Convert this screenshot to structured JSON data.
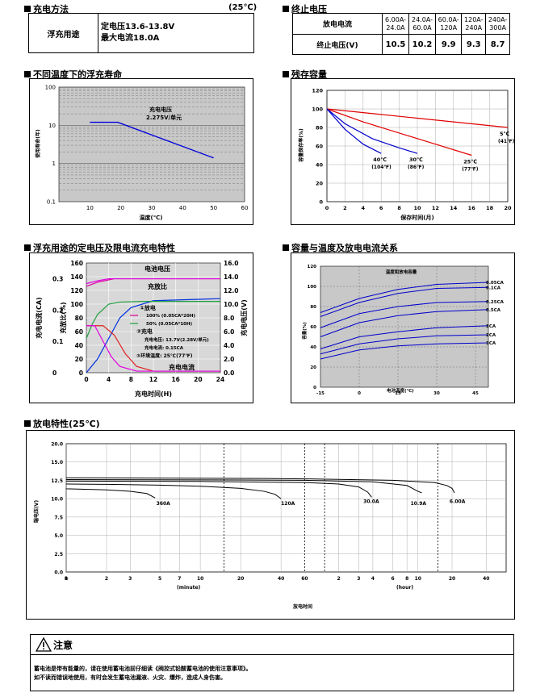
{
  "charging_method": {
    "title": "充电方法",
    "temp": "(25℃)",
    "label": "浮充用途",
    "line1": "定电压13.6-13.8V",
    "line2": "最大电流18.0A"
  },
  "end_voltage": {
    "title": "终止电压",
    "row1_label": "放电电流",
    "row2_label": "终止电压(V)",
    "currents": [
      "6.00A-24.0A",
      "24.0A-60.0A",
      "60.0A-120A",
      "120A-240A",
      "240A-300A"
    ],
    "voltages": [
      "10.5",
      "10.2",
      "9.9",
      "9.3",
      "8.7"
    ]
  },
  "float_life": {
    "title": "不同温度下的浮充寿命",
    "chart_data": {
      "type": "line",
      "xlabel": "温度(℃)",
      "ylabel": "使用寿命(年)",
      "x_ticks": [
        "10",
        "20",
        "30",
        "40",
        "50",
        "60"
      ],
      "y_ticks": [
        "100",
        "10",
        "1",
        "0.1"
      ],
      "xlim": [
        0,
        60
      ],
      "ylim": [
        0.1,
        100
      ],
      "y_scale": "log",
      "annotation1": "充电电压",
      "annotation2": "2.275V/单元",
      "series": [
        {
          "x": [
            10,
            19,
            50
          ],
          "y": [
            12,
            12,
            1.4
          ]
        }
      ]
    }
  },
  "residual_capacity": {
    "title": "残存容量",
    "chart_data": {
      "type": "line",
      "xlabel": "保存时间(月)",
      "ylabel": "容量保存率(%)",
      "x_ticks": [
        "0",
        "2",
        "4",
        "6",
        "8",
        "10",
        "12",
        "14",
        "16",
        "18",
        "20"
      ],
      "y_ticks": [
        "120",
        "100",
        "80",
        "60",
        "40",
        "20",
        "0"
      ],
      "xlim": [
        0,
        20
      ],
      "ylim": [
        0,
        120
      ],
      "series": [
        {
          "name": "5℃",
          "sub": "(41℉)",
          "color": "#e00000",
          "x": [
            0,
            5,
            10,
            15,
            20
          ],
          "y": [
            100,
            95,
            90,
            85,
            80
          ]
        },
        {
          "name": "25℃",
          "sub": "(77℉)",
          "color": "#e00000",
          "x": [
            0,
            4,
            8,
            12,
            16
          ],
          "y": [
            100,
            86,
            74,
            62,
            50
          ]
        },
        {
          "name": "30℃",
          "sub": "(86℉)",
          "color": "#0000cc",
          "x": [
            0,
            2,
            5,
            8,
            10
          ],
          "y": [
            100,
            84,
            68,
            58,
            52
          ]
        },
        {
          "name": "40℃",
          "sub": "(104℉)",
          "color": "#0000cc",
          "x": [
            0,
            2,
            4,
            6
          ],
          "y": [
            100,
            78,
            62,
            52
          ]
        }
      ]
    }
  },
  "float_charging": {
    "title": "浮充用途的定电压及限电流充电特性",
    "chart_data": {
      "type": "line",
      "xlabel": "充电时间(H)",
      "y1label": "充电电流(CA)",
      "y2label": "充放比(%)",
      "y3label": "充电电压(V)",
      "x_ticks": [
        "0",
        "4",
        "8",
        "12",
        "16",
        "20",
        "24"
      ],
      "y_ca_ticks": [
        "0.3",
        "0.2",
        "0.1",
        "0"
      ],
      "y_pct_ticks": [
        "160",
        "140",
        "120",
        "100",
        "80",
        "60",
        "40",
        "20",
        "0"
      ],
      "y_v_ticks": [
        "16.0",
        "14.0",
        "12.0",
        "10.0",
        "8.0",
        "6.0",
        "4.0",
        "2.0",
        "0.0"
      ],
      "label_voltage": "电池电压",
      "label_ratio": "充放比",
      "label_current": "充电电流",
      "legend_discharge": "①放电",
      "legend_d1": "100% (0.05CA*20H)",
      "legend_d2": "50% (0.05CA*10H)",
      "legend_charge": "②充电",
      "legend_c1": "充电电压:  13.7V(2.28V/单元)",
      "legend_c2": "充电电流:  0.15CA",
      "legend_c3": "③环境温度:  25℃(77℉)",
      "series": [
        {
          "name": "voltage-100",
          "color": "#e000a0",
          "x": [
            0,
            2,
            5,
            8,
            24
          ],
          "y": [
            12.6,
            13.2,
            13.7,
            13.7,
            13.7
          ]
        },
        {
          "name": "voltage-50",
          "color": "#e000e0",
          "x": [
            0,
            2,
            4,
            7,
            24
          ],
          "y": [
            13.0,
            13.4,
            13.7,
            13.7,
            13.7
          ]
        },
        {
          "name": "ratio-100",
          "color": "#0030e0",
          "x": [
            0,
            2,
            4,
            6,
            8,
            12,
            24
          ],
          "y": [
            0,
            20,
            50,
            80,
            95,
            105,
            108
          ]
        },
        {
          "name": "ratio-50",
          "color": "#20a040",
          "x": [
            0,
            1,
            2,
            4,
            6,
            10,
            24
          ],
          "y": [
            50,
            70,
            85,
            100,
            103,
            104,
            104
          ]
        },
        {
          "name": "current-100",
          "color": "#e02020",
          "x": [
            0,
            3,
            5,
            7,
            9,
            12,
            24
          ],
          "y": [
            0.15,
            0.15,
            0.12,
            0.06,
            0.02,
            0.005,
            0.005
          ]
        },
        {
          "name": "current-50",
          "color": "#e000e0",
          "x": [
            0,
            1.5,
            3,
            4.5,
            6,
            9,
            24
          ],
          "y": [
            0.15,
            0.15,
            0.1,
            0.05,
            0.02,
            0.005,
            0.005
          ]
        }
      ]
    }
  },
  "capacity_temp": {
    "title": "容量与温度及放电电流关系",
    "chart_data": {
      "type": "line",
      "title": "温度和放电容量",
      "xlabel": "电池温度(℃)",
      "ylabel": "容量(%)",
      "x_ticks": [
        "-15",
        "0",
        "15",
        "30",
        "45"
      ],
      "y_ticks": [
        "120",
        "100",
        "80",
        "60",
        "40",
        "20",
        "0"
      ],
      "xlim": [
        -15,
        50
      ],
      "ylim": [
        0,
        120
      ],
      "series": [
        {
          "name": "0.05CA",
          "y": [
            74,
            88,
            97,
            102,
            104
          ]
        },
        {
          "name": "0.1CA",
          "y": [
            70,
            84,
            93,
            98,
            99
          ]
        },
        {
          "name": "0.25CA",
          "y": [
            59,
            73,
            80,
            84,
            85
          ]
        },
        {
          "name": "0.5CA",
          "y": [
            50,
            64,
            71,
            75,
            77
          ]
        },
        {
          "name": "1CA",
          "y": [
            38,
            50,
            55,
            59,
            61
          ]
        },
        {
          "name": "2CA",
          "y": [
            33,
            43,
            48,
            51,
            52
          ]
        },
        {
          "name": "3CA",
          "y": [
            28,
            37,
            41,
            43,
            44
          ]
        }
      ],
      "x": [
        -15,
        0,
        15,
        30,
        50
      ]
    }
  },
  "discharge": {
    "title": "放电特性(25℃)",
    "chart_data": {
      "type": "line",
      "xlabel": "放电时间",
      "ylabel": "端电压(V)",
      "y_ticks": [
        "20.0",
        "15.0",
        "12.5",
        "10.0",
        "7.5",
        "5.0",
        "2.5",
        "0.0"
      ],
      "x_ticks_min": [
        "0",
        "1",
        "2",
        "3",
        "5",
        "7",
        "10",
        "20",
        "40",
        "60"
      ],
      "x_ticks_hour": [
        "2",
        "3",
        "4",
        "6",
        "8",
        "10",
        "20",
        "40"
      ],
      "unit_minute": "(minute)",
      "unit_hour": "(hour)",
      "curve_labels": [
        "360A",
        "120A",
        "30.0A",
        "10.9A",
        "6.00A"
      ]
    }
  },
  "caution": {
    "title": "注意",
    "line1": "蓄电池是带有能量的，请在使用蓄电池前仔细读《阀控式铅酸蓄电池的使用注意事项》。",
    "line2": "如不读而错误地使用，有时会发生蓄电池漏液、火灾、爆炸，造成人身伤害。"
  }
}
